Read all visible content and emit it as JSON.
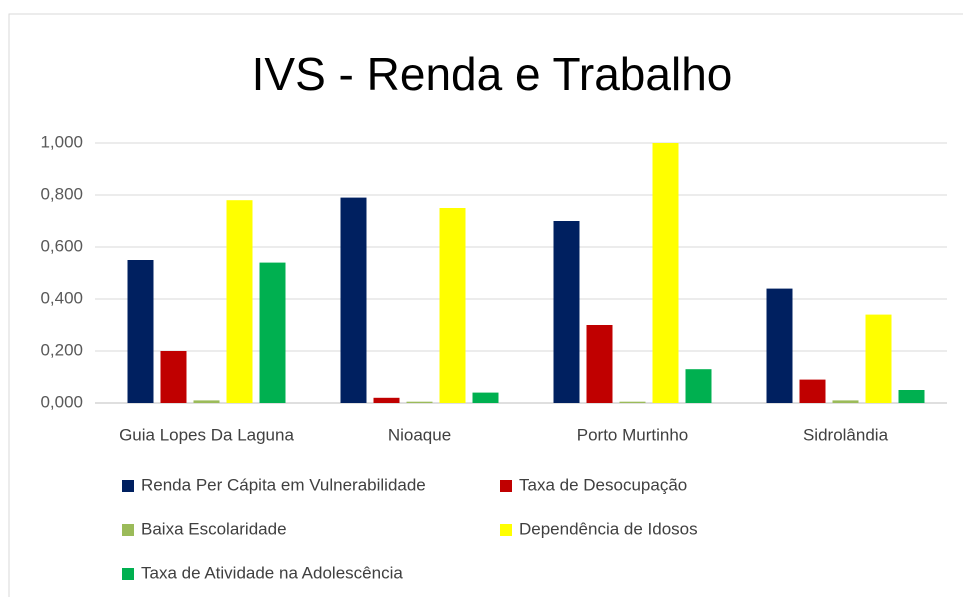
{
  "chart_data": {
    "type": "bar",
    "title": "IVS - Renda e Trabalho",
    "categories": [
      "Guia Lopes Da Laguna",
      "Nioaque",
      "Porto Murtinho",
      "Sidrolândia"
    ],
    "series": [
      {
        "name": "Renda Per Cápita em Vulnerabilidade",
        "color": "#002060",
        "values": [
          0.55,
          0.79,
          0.7,
          0.44
        ]
      },
      {
        "name": "Taxa de Desocupação",
        "color": "#c00000",
        "values": [
          0.2,
          0.02,
          0.3,
          0.09
        ]
      },
      {
        "name": "Baixa Escolaridade",
        "color": "#9bbb59",
        "values": [
          0.01,
          0.005,
          0.005,
          0.01
        ]
      },
      {
        "name": "Dependência de Idosos",
        "color": "#ffff00",
        "values": [
          0.78,
          0.75,
          1.0,
          0.34
        ]
      },
      {
        "name": "Taxa de Atividade na Adolescência",
        "color": "#00b050",
        "values": [
          0.54,
          0.04,
          0.13,
          0.05
        ]
      }
    ],
    "ylim": [
      0,
      1
    ],
    "yticks": [
      {
        "value": 0,
        "label": "0,000"
      },
      {
        "value": 0.2,
        "label": "0,200"
      },
      {
        "value": 0.4,
        "label": "0,400"
      },
      {
        "value": 0.6,
        "label": "0,600"
      },
      {
        "value": 0.8,
        "label": "0,800"
      },
      {
        "value": 1,
        "label": "1,000"
      }
    ],
    "grid": true
  }
}
